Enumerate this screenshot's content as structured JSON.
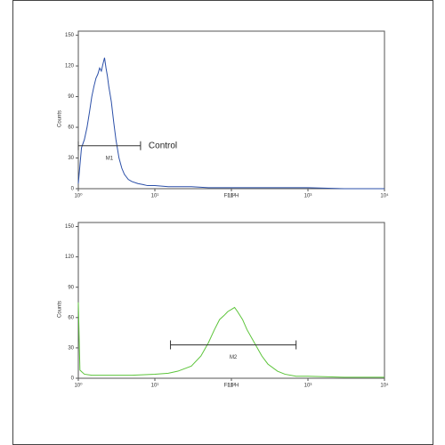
{
  "chart_data": [
    {
      "type": "line",
      "xlabel": "FL1-H",
      "ylabel": "Counts",
      "color": "#2b4fa8",
      "xscale": "log",
      "x": [
        1,
        1.1,
        1.2,
        1.3,
        1.4,
        1.5,
        1.6,
        1.7,
        1.8,
        1.9,
        2.0,
        2.1,
        2.2,
        2.3,
        2.4,
        2.5,
        2.7,
        2.9,
        3.1,
        3.4,
        3.7,
        4,
        4.5,
        5,
        6,
        7,
        8,
        10,
        15,
        20,
        30,
        50,
        100,
        200,
        500,
        1000,
        3000,
        10000
      ],
      "values": [
        5,
        40,
        48,
        60,
        75,
        90,
        100,
        108,
        112,
        118,
        115,
        122,
        128,
        118,
        110,
        100,
        85,
        65,
        48,
        30,
        20,
        14,
        9,
        7,
        5,
        4,
        3,
        3,
        2,
        2,
        2,
        1,
        1,
        1,
        1,
        1,
        0,
        0
      ],
      "xlim": [
        1,
        10000
      ],
      "xticks": [
        {
          "value": 1,
          "label": "10⁰"
        },
        {
          "value": 10,
          "label": "10¹"
        },
        {
          "value": 100,
          "label": "10²"
        },
        {
          "value": 1000,
          "label": "10³"
        },
        {
          "value": 10000,
          "label": "10⁴"
        }
      ],
      "ylim": [
        0,
        154
      ],
      "yticks": [
        0,
        30,
        60,
        90,
        120,
        150
      ],
      "gates": [
        {
          "label": "M1",
          "x": [
            1,
            6.5
          ],
          "y": 42
        }
      ],
      "annotations": [
        "Control"
      ]
    },
    {
      "type": "line",
      "xlabel": "FL1-H",
      "ylabel": "Counts",
      "color": "#5cc43a",
      "xscale": "log",
      "x": [
        1,
        1.05,
        1.2,
        1.5,
        2,
        3,
        5,
        10,
        15,
        20,
        30,
        40,
        50,
        60,
        70,
        80,
        90,
        100,
        110,
        120,
        140,
        160,
        200,
        250,
        300,
        400,
        500,
        700,
        1000,
        3000,
        10000
      ],
      "values": [
        75,
        8,
        4,
        3,
        3,
        3,
        3,
        4,
        5,
        7,
        12,
        22,
        35,
        48,
        58,
        62,
        66,
        68,
        70,
        66,
        58,
        48,
        35,
        22,
        14,
        7,
        4,
        2,
        2,
        1,
        1
      ],
      "xlim": [
        1,
        10000
      ],
      "xticks": [
        {
          "value": 1,
          "label": "10⁰"
        },
        {
          "value": 10,
          "label": "10¹"
        },
        {
          "value": 100,
          "label": "10²"
        },
        {
          "value": 1000,
          "label": "10³"
        },
        {
          "value": 10000,
          "label": "10⁴"
        }
      ],
      "ylim": [
        0,
        154
      ],
      "yticks": [
        0,
        30,
        60,
        90,
        120,
        150
      ],
      "gates": [
        {
          "label": "M2",
          "x": [
            16,
            700
          ],
          "y": 33
        }
      ],
      "annotations": []
    }
  ]
}
